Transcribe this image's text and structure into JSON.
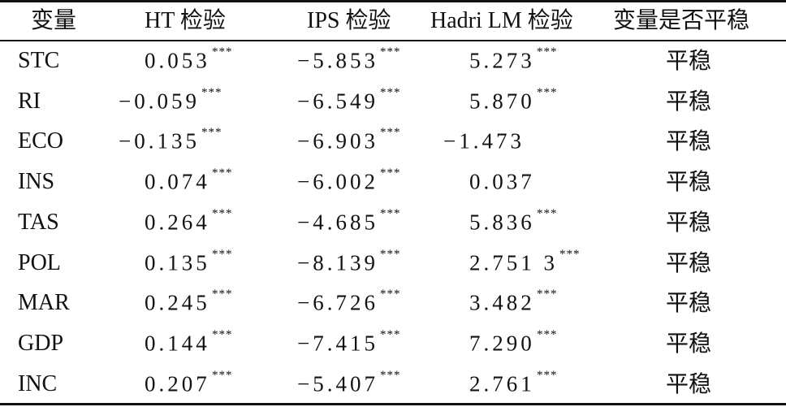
{
  "table": {
    "header": [
      "变量",
      "HT 检验",
      "IPS 检验",
      "Hadri LM 检验",
      "变量是否平稳"
    ],
    "rows": [
      {
        "variable": "STC",
        "ht": {
          "value": "0.053",
          "sig": "***"
        },
        "ips": {
          "value": "−5.853",
          "sig": "***"
        },
        "hadri": {
          "value": "5.273",
          "sig": "***"
        },
        "stationary": "平稳"
      },
      {
        "variable": "RI",
        "ht": {
          "value": "−0.059",
          "sig": "***"
        },
        "ips": {
          "value": "−6.549",
          "sig": "***"
        },
        "hadri": {
          "value": "5.870",
          "sig": "***"
        },
        "stationary": "平稳"
      },
      {
        "variable": "ECO",
        "ht": {
          "value": "−0.135",
          "sig": "***"
        },
        "ips": {
          "value": "−6.903",
          "sig": "***"
        },
        "hadri": {
          "value": "−1.473"
        },
        "stationary": "平稳"
      },
      {
        "variable": "INS",
        "ht": {
          "value": "0.074",
          "sig": "***"
        },
        "ips": {
          "value": "−6.002",
          "sig": "***"
        },
        "hadri": {
          "value": "0.037"
        },
        "stationary": "平稳"
      },
      {
        "variable": "TAS",
        "ht": {
          "value": "0.264",
          "sig": "***"
        },
        "ips": {
          "value": "−4.685",
          "sig": "***"
        },
        "hadri": {
          "value": "5.836",
          "sig": "***"
        },
        "stationary": "平稳"
      },
      {
        "variable": "POL",
        "ht": {
          "value": "0.135",
          "sig": "***"
        },
        "ips": {
          "value": "−8.139",
          "sig": "***"
        },
        "hadri": {
          "value": "2.751 3",
          "sig": "***"
        },
        "stationary": "平稳"
      },
      {
        "variable": "MAR",
        "ht": {
          "value": "0.245",
          "sig": "***"
        },
        "ips": {
          "value": "−6.726",
          "sig": "***"
        },
        "hadri": {
          "value": "3.482",
          "sig": "***"
        },
        "stationary": "平稳"
      },
      {
        "variable": "GDP",
        "ht": {
          "value": "0.144",
          "sig": "***"
        },
        "ips": {
          "value": "−7.415",
          "sig": "***"
        },
        "hadri": {
          "value": "7.290",
          "sig": "***"
        },
        "stationary": "平稳"
      },
      {
        "variable": "INC",
        "ht": {
          "value": "0.207",
          "sig": "***"
        },
        "ips": {
          "value": "−5.407",
          "sig": "***"
        },
        "hadri": {
          "value": "2.761",
          "sig": "***"
        },
        "stationary": "平稳"
      }
    ]
  }
}
